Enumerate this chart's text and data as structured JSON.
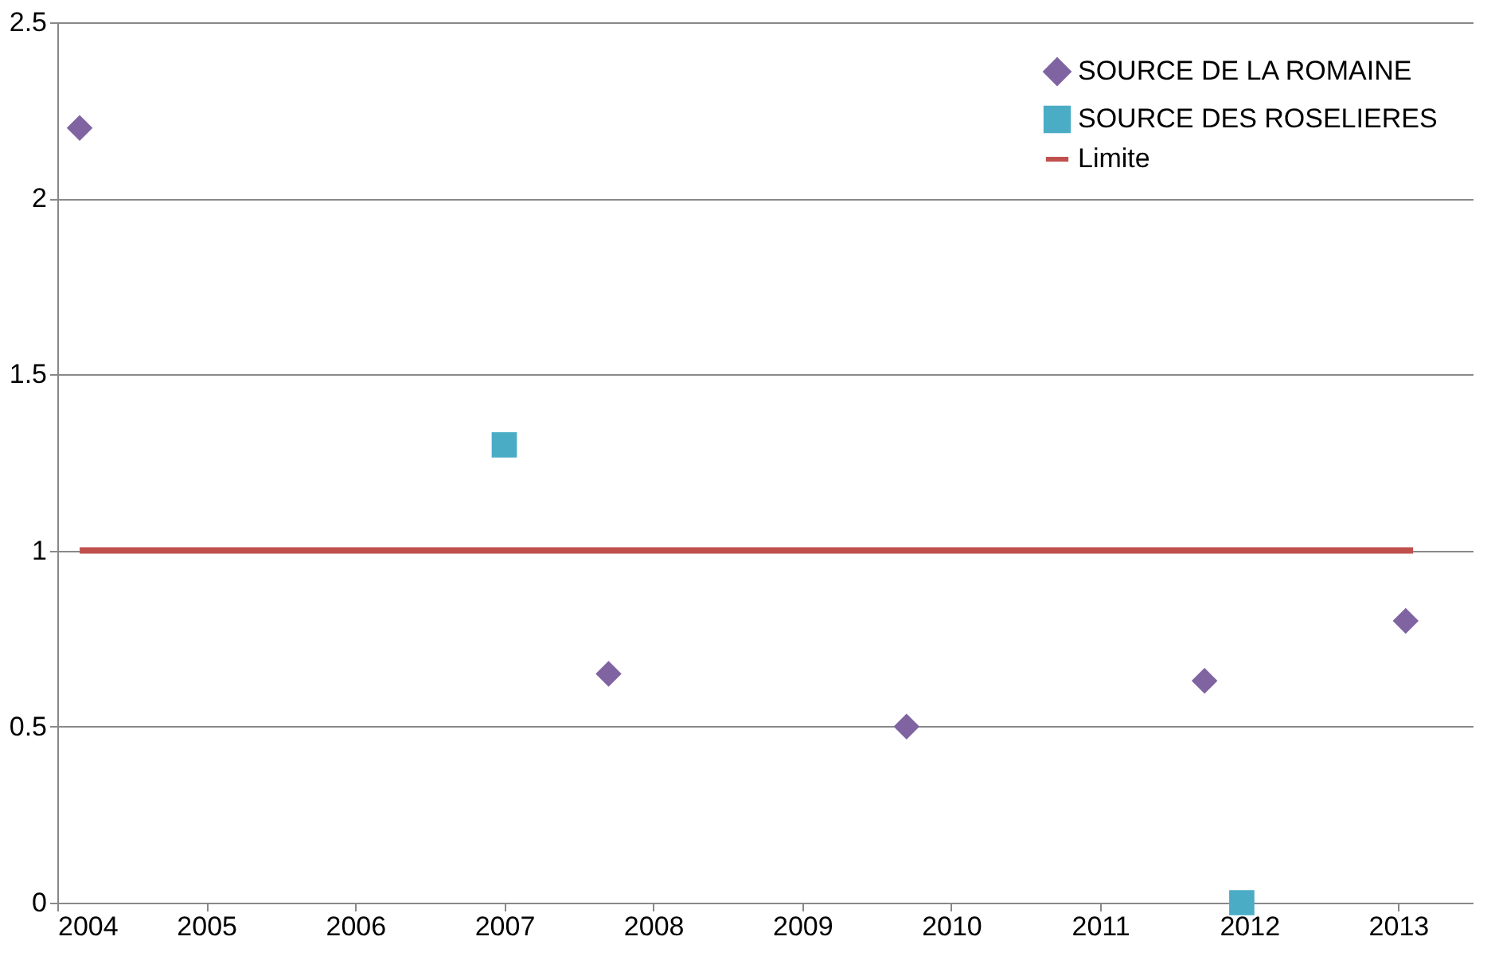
{
  "chart_data": {
    "type": "scatter",
    "xlim": [
      2004,
      2013.5
    ],
    "xticks": [
      2004,
      2005,
      2006,
      2007,
      2008,
      2009,
      2010,
      2011,
      2012,
      2013
    ],
    "ylim": [
      0,
      2.5
    ],
    "yticks": [
      0,
      0.5,
      1,
      1.5,
      2,
      2.5
    ],
    "grid": "y",
    "legend": "top right",
    "series": [
      {
        "name": "SOURCE DE LA ROMAINE",
        "color": "#8064a2",
        "marker": "diamond",
        "x": [
          2004.15,
          2007.7,
          2009.7,
          2011.7,
          2013.05
        ],
        "values": [
          2.2,
          0.65,
          0.5,
          0.63,
          0.8
        ]
      },
      {
        "name": "SOURCE DES ROSELIERES",
        "color": "#4bacc6",
        "marker": "square",
        "x": [
          2007,
          2011.95
        ],
        "values": [
          1.3,
          0
        ]
      },
      {
        "name": "Limite",
        "type": "line",
        "color": "#c0504d",
        "marker": "none",
        "x": [
          2004.15,
          2013.1
        ],
        "values": [
          1,
          1
        ]
      }
    ]
  }
}
